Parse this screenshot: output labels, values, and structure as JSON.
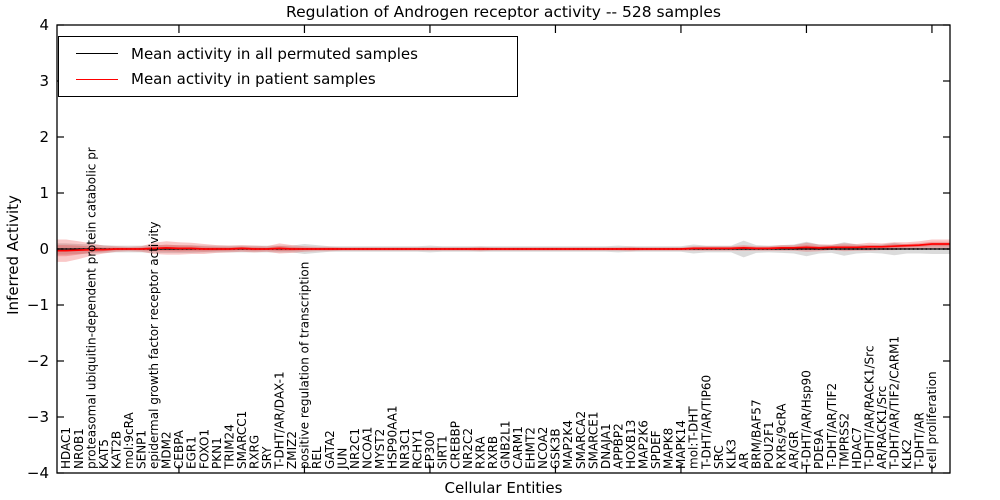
{
  "chart_data": {
    "type": "line",
    "title": "Regulation of Androgen receptor activity -- 528 samples",
    "xlabel": "Cellular Entities",
    "ylabel": "Inferred Activity",
    "ylim": [
      -4,
      4
    ],
    "yticks": [
      4,
      3,
      2,
      1,
      0,
      -1,
      -2,
      -3,
      -4
    ],
    "x_major_tick_positions": [
      10,
      20,
      30,
      40,
      50,
      60,
      70
    ],
    "grid": false,
    "legend_position": "upper left",
    "zero_line_style": "dotted",
    "categories": [
      "HDAC1",
      "NR0B1",
      "proteasomal ubiquitin-dependent protein catabolic pr",
      "KAT5",
      "KAT2B",
      "mol:9cRA",
      "SENP1",
      "epidermal growth factor receptor activity",
      "MDM2",
      "CEBPA",
      "EGR1",
      "FOXO1",
      "PKN1",
      "TRIM24",
      "SMARCC1",
      "RXRG",
      "SRY",
      "T-DHT/AR/DAX-1",
      "ZMIZ2",
      "positive regulation of transcription",
      "REL",
      "GATA2",
      "JUN",
      "NR2C1",
      "NCOA1",
      "MYST2",
      "HSP90AA1",
      "NR3C1",
      "RCHY1",
      "EP300",
      "SIRT1",
      "CREBBP",
      "NR2C2",
      "RXRA",
      "RXRB",
      "GNB2L1",
      "CARM1",
      "EHMT2",
      "NCOA2",
      "GSK3B",
      "MAP2K4",
      "SMARCA2",
      "SMARCE1",
      "DNAJA1",
      "APPBP2",
      "HOXB13",
      "MAP2K6",
      "SPDEF",
      "MAPK8",
      "MAPK14",
      "mol:T-DHT",
      "T-DHT/AR/TIP60",
      "SRC",
      "KLK3",
      "AR",
      "BRM/BAF57",
      "POU2F1",
      "RXRs/9cRA",
      "AR/GR",
      "T-DHT/AR/Hsp90",
      "PDE9A",
      "T-DHT/AR/TIF2",
      "TMPRSS2",
      "HDAC7",
      "T-DHT/AR/RACK1/Src",
      "AR/RACK1/Src",
      "T-DHT/AR/TIF2/CARM1",
      "KLK2",
      "T-DHT/AR",
      "cell proliferation"
    ],
    "series": [
      {
        "name": "Mean activity in all permuted samples",
        "color": "#000000",
        "style": "solid",
        "values": [
          0,
          0,
          0,
          0,
          0,
          0,
          0,
          0,
          0,
          0,
          0,
          0,
          0,
          0,
          0,
          0,
          0,
          0,
          0,
          0,
          0,
          0,
          0,
          0,
          0,
          0,
          0,
          0,
          0,
          0,
          0,
          0,
          0,
          0,
          0,
          0,
          0,
          0,
          0,
          0,
          0,
          0,
          0,
          0,
          0,
          0,
          0,
          0,
          0,
          0,
          0,
          0,
          0,
          0,
          0,
          0,
          0,
          0,
          0,
          0,
          0,
          0,
          0,
          0,
          0,
          0,
          0,
          0,
          0,
          0
        ]
      },
      {
        "name": "Mean activity in patient samples",
        "color": "#ff0000",
        "style": "solid",
        "values": [
          -0.03,
          -0.02,
          -0.01,
          -0.01,
          0,
          0,
          0,
          0.01,
          0.02,
          0.01,
          0.01,
          0,
          0,
          0,
          0.01,
          0,
          0,
          0.01,
          0,
          0,
          0,
          0,
          0,
          0,
          0,
          0,
          0,
          0,
          0,
          0,
          0,
          0,
          0,
          0,
          0,
          0,
          0,
          0,
          0,
          0,
          0,
          0,
          0,
          0,
          0,
          0,
          0,
          0,
          0,
          0,
          0.01,
          0.01,
          0.01,
          0.01,
          0.02,
          0.01,
          0.01,
          0.02,
          0.02,
          0.03,
          0.02,
          0.03,
          0.03,
          0.03,
          0.04,
          0.04,
          0.05,
          0.06,
          0.07,
          0.09
        ]
      }
    ],
    "bands": [
      {
        "name": "permuted-samples-spread",
        "color": "rgba(0,0,0,0.14)",
        "center_series": 0,
        "layered": false,
        "halfwidths": [
          0.1,
          0.09,
          0.08,
          0.07,
          0.06,
          0.06,
          0.06,
          0.07,
          0.07,
          0.07,
          0.07,
          0.06,
          0.06,
          0.06,
          0.06,
          0.06,
          0.06,
          0.06,
          0.06,
          0.09,
          0.07,
          0.05,
          0.05,
          0.05,
          0.05,
          0.05,
          0.05,
          0.05,
          0.05,
          0.06,
          0.05,
          0.05,
          0.05,
          0.05,
          0.05,
          0.05,
          0.05,
          0.05,
          0.05,
          0.05,
          0.05,
          0.05,
          0.05,
          0.05,
          0.06,
          0.05,
          0.05,
          0.05,
          0.05,
          0.05,
          0.08,
          0.06,
          0.06,
          0.06,
          0.15,
          0.07,
          0.06,
          0.07,
          0.08,
          0.13,
          0.08,
          0.07,
          0.12,
          0.08,
          0.07,
          0.08,
          0.11,
          0.08,
          0.08,
          0.09
        ]
      },
      {
        "name": "patient-samples-spread",
        "color": "rgba(230,25,25,0.24)",
        "center_series": 1,
        "layered": true,
        "halfwidths": [
          0.2,
          0.16,
          0.11,
          0.07,
          0.05,
          0.04,
          0.05,
          0.1,
          0.12,
          0.11,
          0.1,
          0.09,
          0.07,
          0.06,
          0.06,
          0.06,
          0.05,
          0.09,
          0.07,
          0.05,
          0.04,
          0.04,
          0.03,
          0.03,
          0.03,
          0.03,
          0.03,
          0.03,
          0.03,
          0.03,
          0.03,
          0.03,
          0.03,
          0.04,
          0.03,
          0.03,
          0.03,
          0.03,
          0.03,
          0.03,
          0.03,
          0.03,
          0.03,
          0.03,
          0.03,
          0.04,
          0.03,
          0.03,
          0.03,
          0.03,
          0.04,
          0.04,
          0.04,
          0.04,
          0.05,
          0.04,
          0.04,
          0.05,
          0.05,
          0.08,
          0.06,
          0.05,
          0.07,
          0.06,
          0.07,
          0.06,
          0.07,
          0.06,
          0.07,
          0.08
        ]
      }
    ]
  }
}
